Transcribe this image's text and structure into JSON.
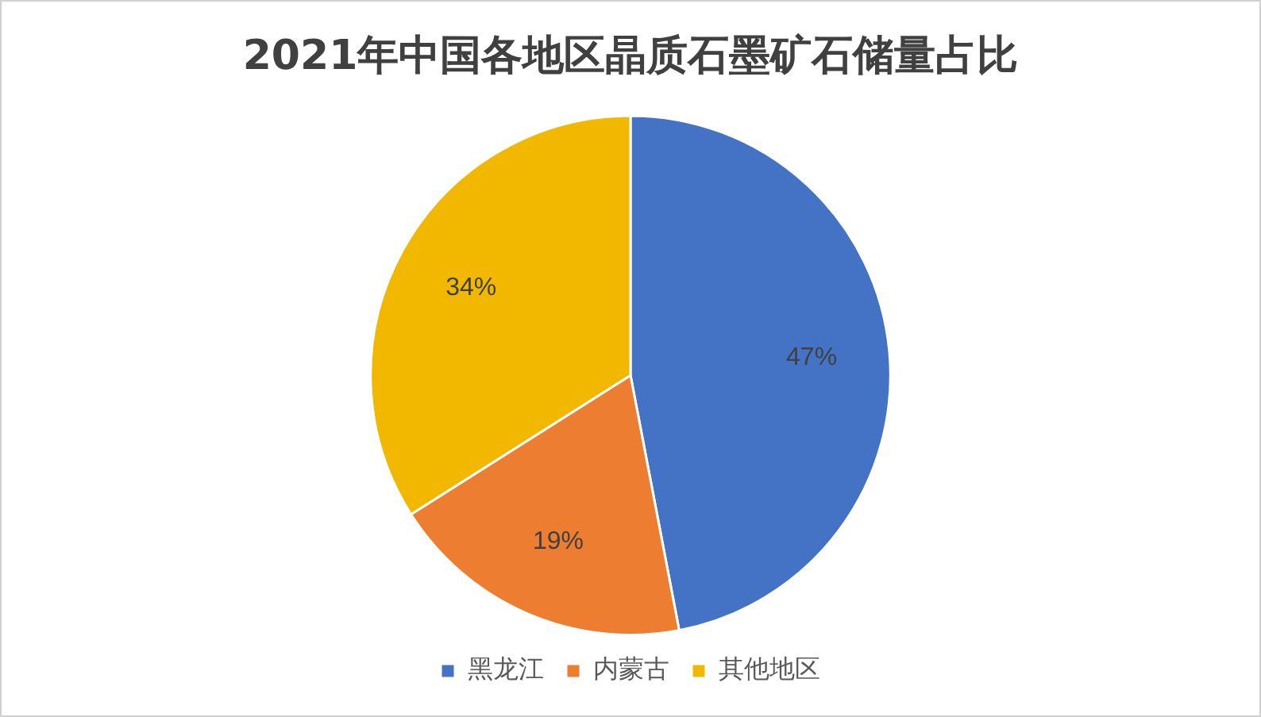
{
  "chart_data": {
    "type": "pie",
    "title": "2021年中国各地区晶质石墨矿石储量占比",
    "categories": [
      "黑龙江",
      "内蒙古",
      "其他地区"
    ],
    "values": [
      47,
      19,
      34
    ],
    "colors": [
      "#4472c4",
      "#ed7d31",
      "#f2b800"
    ],
    "value_labels": [
      "47%",
      "19%",
      "34%"
    ],
    "legend": "bottom"
  }
}
